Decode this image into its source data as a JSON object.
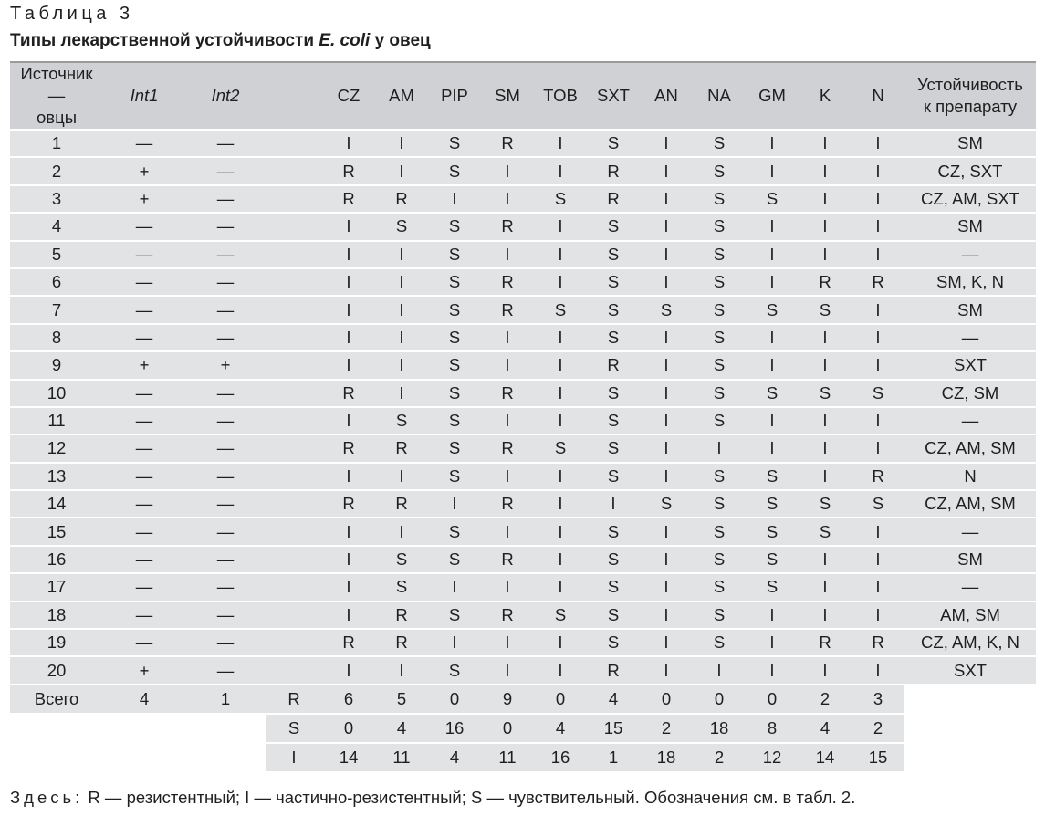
{
  "caption": {
    "label": "Таблица 3",
    "title_prefix": "Типы лекарственной устойчивости ",
    "title_italic": "E. coli",
    "title_suffix": " у овец"
  },
  "table": {
    "headers": {
      "source_line1": "Источник —",
      "source_line2": "овцы",
      "int1": "Int1",
      "int2": "Int2",
      "blank": "",
      "drugs": [
        "CZ",
        "AM",
        "PIP",
        "SM",
        "TOB",
        "SXT",
        "AN",
        "NA",
        "GM",
        "K",
        "N"
      ],
      "resist_line1": "Устойчивость",
      "resist_line2": "к препарату"
    },
    "rows": [
      {
        "n": "1",
        "int1": "—",
        "int2": "—",
        "v": [
          "I",
          "I",
          "S",
          "R",
          "I",
          "S",
          "I",
          "S",
          "I",
          "I",
          "I"
        ],
        "res": "SM"
      },
      {
        "n": "2",
        "int1": "+",
        "int2": "—",
        "v": [
          "R",
          "I",
          "S",
          "I",
          "I",
          "R",
          "I",
          "S",
          "I",
          "I",
          "I"
        ],
        "res": "CZ, SXT"
      },
      {
        "n": "3",
        "int1": "+",
        "int2": "—",
        "v": [
          "R",
          "R",
          "I",
          "I",
          "S",
          "R",
          "I",
          "S",
          "S",
          "I",
          "I"
        ],
        "res": "CZ, AM, SXT"
      },
      {
        "n": "4",
        "int1": "—",
        "int2": "—",
        "v": [
          "I",
          "S",
          "S",
          "R",
          "I",
          "S",
          "I",
          "S",
          "I",
          "I",
          "I"
        ],
        "res": "SM"
      },
      {
        "n": "5",
        "int1": "—",
        "int2": "—",
        "v": [
          "I",
          "I",
          "S",
          "I",
          "I",
          "S",
          "I",
          "S",
          "I",
          "I",
          "I"
        ],
        "res": "—"
      },
      {
        "n": "6",
        "int1": "—",
        "int2": "—",
        "v": [
          "I",
          "I",
          "S",
          "R",
          "I",
          "S",
          "I",
          "S",
          "I",
          "R",
          "R"
        ],
        "res": "SM, K, N"
      },
      {
        "n": "7",
        "int1": "—",
        "int2": "—",
        "v": [
          "I",
          "I",
          "S",
          "R",
          "S",
          "S",
          "S",
          "S",
          "S",
          "S",
          "I"
        ],
        "res": "SM"
      },
      {
        "n": "8",
        "int1": "—",
        "int2": "—",
        "v": [
          "I",
          "I",
          "S",
          "I",
          "I",
          "S",
          "I",
          "S",
          "I",
          "I",
          "I"
        ],
        "res": "—"
      },
      {
        "n": "9",
        "int1": "+",
        "int2": "+",
        "v": [
          "I",
          "I",
          "S",
          "I",
          "I",
          "R",
          "I",
          "S",
          "I",
          "I",
          "I"
        ],
        "res": "SXT"
      },
      {
        "n": "10",
        "int1": "—",
        "int2": "—",
        "v": [
          "R",
          "I",
          "S",
          "R",
          "I",
          "S",
          "I",
          "S",
          "S",
          "S",
          "S"
        ],
        "res": "CZ, SM"
      },
      {
        "n": "11",
        "int1": "—",
        "int2": "—",
        "v": [
          "I",
          "S",
          "S",
          "I",
          "I",
          "S",
          "I",
          "S",
          "I",
          "I",
          "I"
        ],
        "res": "—"
      },
      {
        "n": "12",
        "int1": "—",
        "int2": "—",
        "v": [
          "R",
          "R",
          "S",
          "R",
          "S",
          "S",
          "I",
          "I",
          "I",
          "I",
          "I"
        ],
        "res": "CZ, AM, SM"
      },
      {
        "n": "13",
        "int1": "—",
        "int2": "—",
        "v": [
          "I",
          "I",
          "S",
          "I",
          "I",
          "S",
          "I",
          "S",
          "S",
          "I",
          "R"
        ],
        "res": "N"
      },
      {
        "n": "14",
        "int1": "—",
        "int2": "—",
        "v": [
          "R",
          "R",
          "I",
          "R",
          "I",
          "I",
          "S",
          "S",
          "S",
          "S",
          "S"
        ],
        "res": "CZ, AM, SM"
      },
      {
        "n": "15",
        "int1": "—",
        "int2": "—",
        "v": [
          "I",
          "I",
          "S",
          "I",
          "I",
          "S",
          "I",
          "S",
          "S",
          "S",
          "I"
        ],
        "res": "—"
      },
      {
        "n": "16",
        "int1": "—",
        "int2": "—",
        "v": [
          "I",
          "S",
          "S",
          "R",
          "I",
          "S",
          "I",
          "S",
          "S",
          "I",
          "I"
        ],
        "res": "SM"
      },
      {
        "n": "17",
        "int1": "—",
        "int2": "—",
        "v": [
          "I",
          "S",
          "I",
          "I",
          "I",
          "S",
          "I",
          "S",
          "S",
          "I",
          "I"
        ],
        "res": "—"
      },
      {
        "n": "18",
        "int1": "—",
        "int2": "—",
        "v": [
          "I",
          "R",
          "S",
          "R",
          "S",
          "S",
          "I",
          "S",
          "I",
          "I",
          "I"
        ],
        "res": "AM, SM"
      },
      {
        "n": "19",
        "int1": "—",
        "int2": "—",
        "v": [
          "R",
          "R",
          "I",
          "I",
          "I",
          "S",
          "I",
          "S",
          "I",
          "R",
          "R"
        ],
        "res": "CZ, AM, K, N"
      },
      {
        "n": "20",
        "int1": "+",
        "int2": "—",
        "v": [
          "I",
          "I",
          "S",
          "I",
          "I",
          "R",
          "I",
          "I",
          "I",
          "I",
          "I"
        ],
        "res": "SXT"
      }
    ],
    "totals": {
      "label": "Всего",
      "int1": "4",
      "int2": "1",
      "rows": [
        {
          "k": "R",
          "v": [
            "6",
            "5",
            "0",
            "9",
            "0",
            "4",
            "0",
            "0",
            "0",
            "2",
            "3"
          ]
        },
        {
          "k": "S",
          "v": [
            "0",
            "4",
            "16",
            "0",
            "4",
            "15",
            "2",
            "18",
            "8",
            "4",
            "2"
          ]
        },
        {
          "k": "I",
          "v": [
            "14",
            "11",
            "4",
            "11",
            "16",
            "1",
            "18",
            "2",
            "12",
            "14",
            "15"
          ]
        }
      ]
    }
  },
  "footnote": {
    "prefix": "Здесь:",
    "text": " R — резистентный; I — частично-резистентный; S — чувствительный. Обозначения см. в табл. 2."
  }
}
